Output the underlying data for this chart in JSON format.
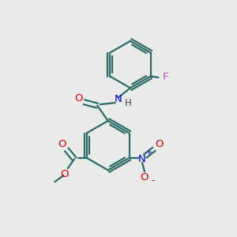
{
  "background_color": "#e8ebe8",
  "bond_color": "#2d6b6b",
  "bond_width": 1.6,
  "O_color": "#dd0000",
  "N_color": "#0000cc",
  "F_color": "#cc44cc",
  "figsize": [
    3.0,
    3.0
  ],
  "dpi": 100,
  "xlim": [
    0,
    10
  ],
  "ylim": [
    0,
    10
  ]
}
